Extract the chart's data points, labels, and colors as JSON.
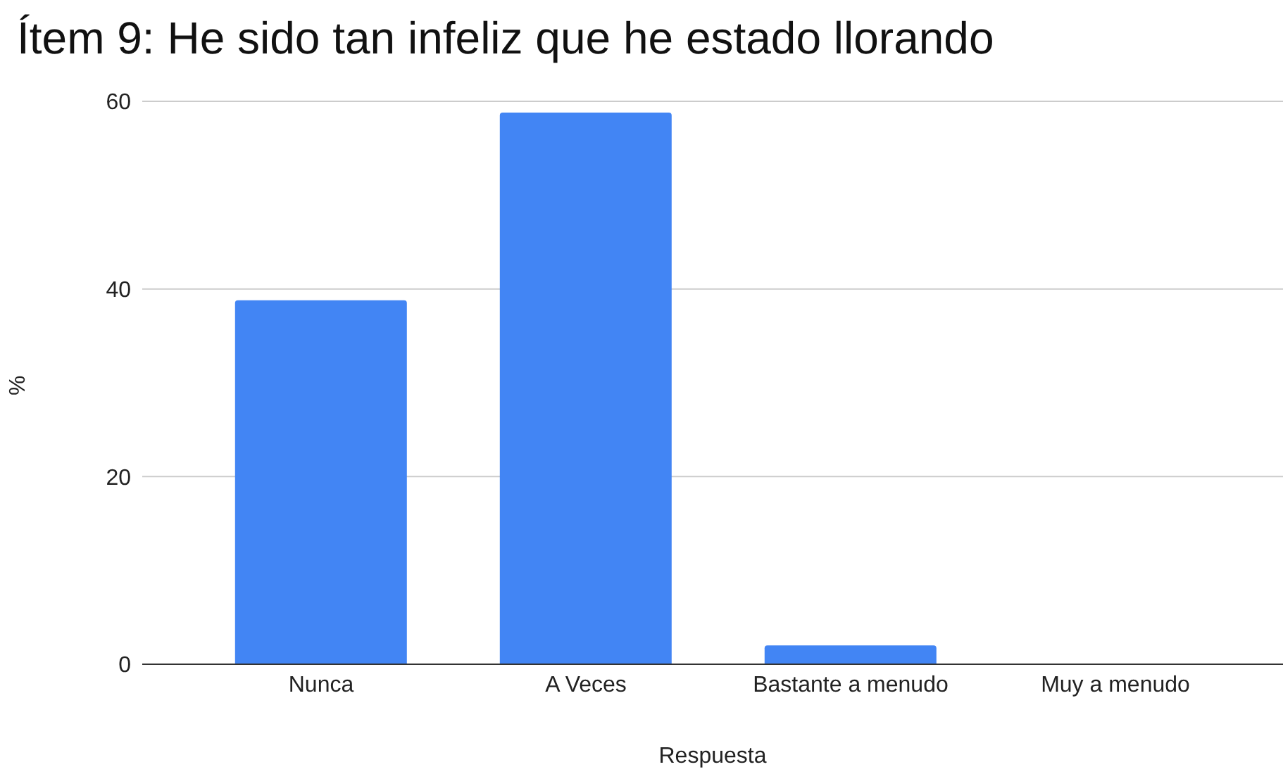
{
  "chart_data": {
    "type": "bar",
    "title": "Ítem 9: He sido tan infeliz que he estado llorando",
    "xlabel": "Respuesta",
    "ylabel": "%",
    "categories": [
      "Nunca",
      "A Veces",
      "Bastante a menudo",
      "Muy a menudo"
    ],
    "values": [
      38.8,
      58.8,
      2,
      0
    ],
    "color": "#4285f4",
    "ylim": [
      0,
      60
    ],
    "yticks": [
      0,
      20,
      40,
      60
    ],
    "grid": "y"
  }
}
